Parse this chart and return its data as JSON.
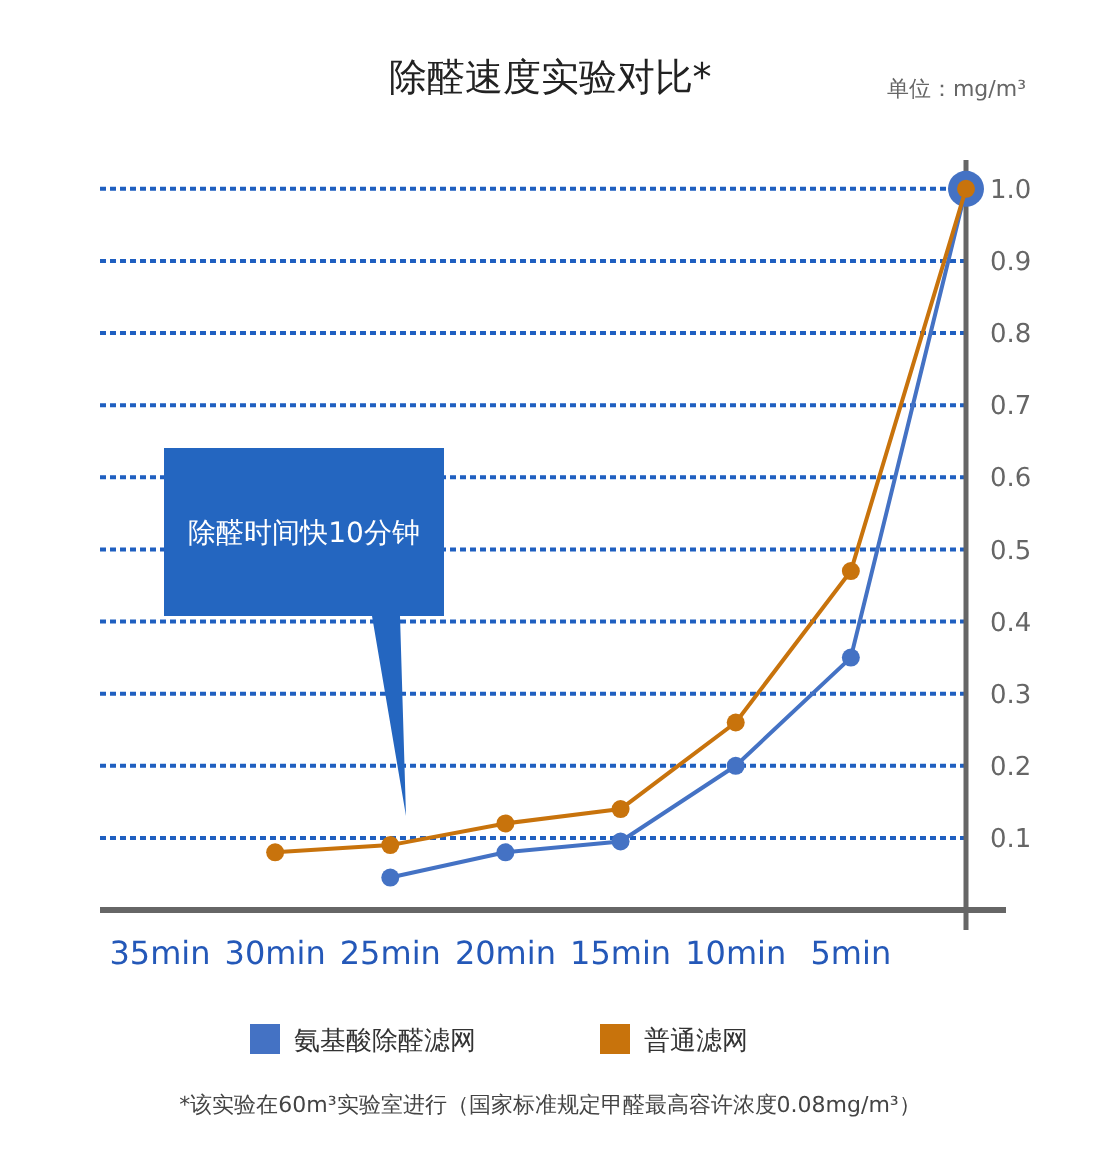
{
  "chart_data": {
    "type": "line",
    "title": "除醛速度实验对比*",
    "ylabel": "单位：mg/m³",
    "categories": [
      "35min",
      "30min",
      "25min",
      "20min",
      "15min",
      "10min",
      "5min",
      null
    ],
    "series": [
      {
        "name": "氨基酸除醛滤网",
        "color": "#4472c4",
        "values": [
          null,
          null,
          0.045,
          0.08,
          0.095,
          0.2,
          0.35,
          1.0
        ]
      },
      {
        "name": "普通滤网",
        "color": "#c8730c",
        "values": [
          null,
          0.08,
          0.09,
          0.12,
          0.14,
          0.26,
          0.47,
          1.0
        ]
      }
    ],
    "ylim": [
      0,
      1.04
    ],
    "yticks": [
      {
        "value": 0.1,
        "label": "0.1"
      },
      {
        "value": 0.2,
        "label": "0.2"
      },
      {
        "value": 0.3,
        "label": "0.3"
      },
      {
        "value": 0.4,
        "label": "0.4"
      },
      {
        "value": 0.5,
        "label": "0.5"
      },
      {
        "value": 0.6,
        "label": "0.6"
      },
      {
        "value": 0.7,
        "label": "0.7"
      },
      {
        "value": 0.8,
        "label": "0.8"
      },
      {
        "value": 0.9,
        "label": "0.9"
      },
      {
        "value": 1.0,
        "label": "1.0"
      }
    ],
    "grid": "y",
    "legend": "bottom",
    "marker": "circle",
    "line_style": "solid",
    "annotations": [
      "除醛时间快10分钟",
      "*该实验在60m³实验室进行（国家标准规定甲醛最高容许浓度0.08mg/m³）"
    ]
  }
}
